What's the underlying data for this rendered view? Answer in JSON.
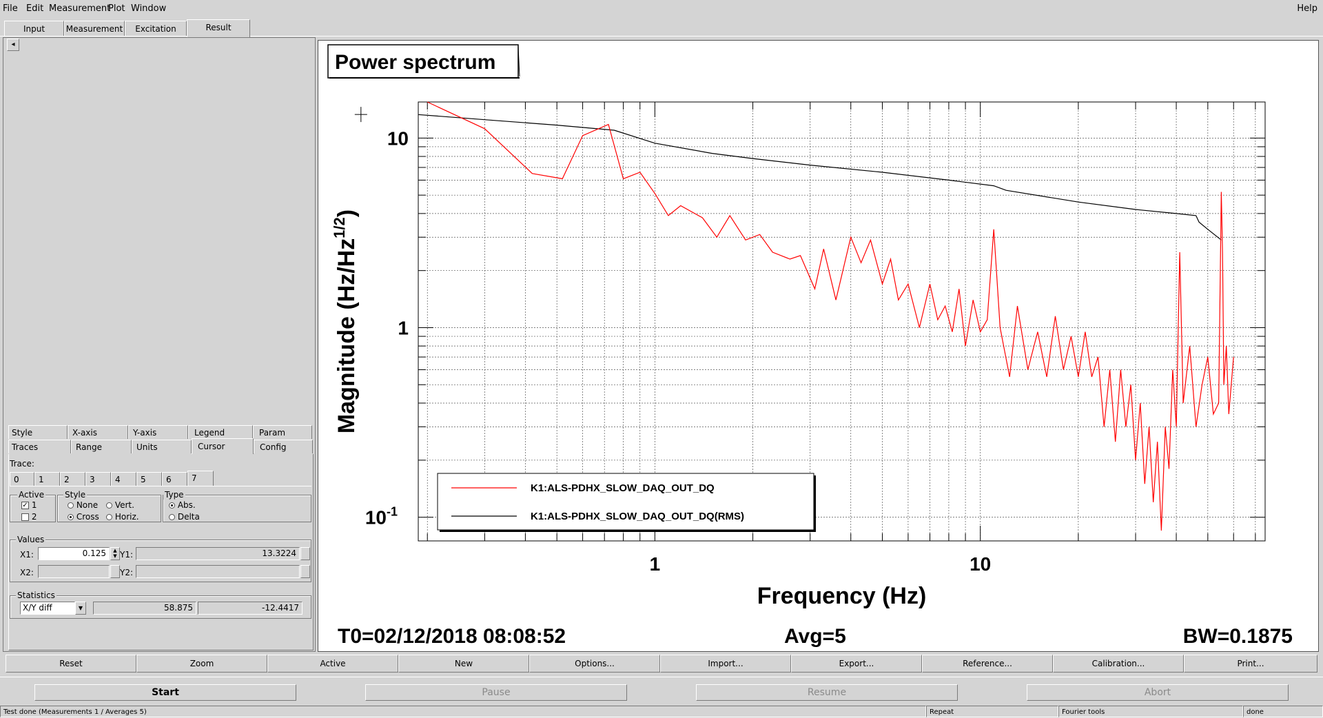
{
  "menu": {
    "file": "File",
    "edit": "Edit",
    "measurement": "Measurement",
    "plot": "Plot",
    "window": "Window",
    "help": "Help"
  },
  "main_tabs": [
    "Input",
    "Measurement",
    "Excitation",
    "Result"
  ],
  "main_tab_selected": "Result",
  "left_panel": {
    "collapse_glyph": "◂",
    "option_tabs_row1": [
      "Style",
      "X-axis",
      "Y-axis",
      "Legend",
      "Param"
    ],
    "option_tabs_row2": [
      "Traces",
      "Range",
      "Units",
      "Cursor",
      "Config"
    ],
    "option_tab_selected": "Cursor",
    "trace_label": "Trace:",
    "trace_tabs": [
      "0",
      "1",
      "2",
      "3",
      "4",
      "5",
      "6",
      "7"
    ],
    "trace_selected": "7",
    "active": {
      "title": "Active",
      "items": [
        {
          "label": "1",
          "checked": true
        },
        {
          "label": "2",
          "checked": false
        }
      ]
    },
    "style": {
      "title": "Style",
      "none": "None",
      "vert": "Vert.",
      "cross": "Cross",
      "horiz": "Horiz.",
      "selected": "Cross"
    },
    "type": {
      "title": "Type",
      "abs": "Abs.",
      "delta": "Delta",
      "selected": "Abs."
    },
    "values": {
      "title": "Values",
      "x1_label": "X1:",
      "x1": "0.125",
      "y1_label": "Y1:",
      "y1": "13.3224",
      "x2_label": "X2:",
      "x2": "",
      "y2_label": "Y2:",
      "y2": ""
    },
    "statistics": {
      "title": "Statistics",
      "mode": "X/Y diff",
      "v1": "58.875",
      "v2": "-12.4417"
    }
  },
  "plot": {
    "title": "Power spectrum",
    "t0": "T0=02/12/2018 08:08:52",
    "avg": "Avg=5",
    "bw": "BW=0.1875",
    "chart_data": {
      "type": "line",
      "xlabel": "Frequency (Hz)",
      "ylabel": "Magnitude (Hz/Hz",
      "ylabel_sup": "1/2",
      "ylabel_close": ")",
      "x_scale": "log",
      "y_scale": "log",
      "xlim": [
        0.1875,
        75
      ],
      "ylim": [
        0.075,
        15.5
      ],
      "grid": true,
      "x_tick_labels": [
        {
          "v": 1,
          "t": "1"
        },
        {
          "v": 10,
          "t": "10"
        }
      ],
      "y_tick_labels": [
        {
          "v": 10,
          "t": "10"
        },
        {
          "v": 1,
          "t": "1"
        },
        {
          "v": 0.1,
          "t": "10",
          "sup": "-1"
        }
      ],
      "legend_placement": "bottom-left",
      "series": [
        {
          "name": "K1:ALS-PDHX_SLOW_DAQ_OUT_DQ",
          "color": "#ff0000",
          "points": [
            [
              0.2,
              15.5
            ],
            [
              0.3,
              11.2
            ],
            [
              0.42,
              6.5
            ],
            [
              0.52,
              6.1
            ],
            [
              0.6,
              10.3
            ],
            [
              0.72,
              11.8
            ],
            [
              0.8,
              6.1
            ],
            [
              0.9,
              6.6
            ],
            [
              1.0,
              5.1
            ],
            [
              1.1,
              3.9
            ],
            [
              1.2,
              4.4
            ],
            [
              1.4,
              3.8
            ],
            [
              1.55,
              3.0
            ],
            [
              1.7,
              3.9
            ],
            [
              1.9,
              2.9
            ],
            [
              2.1,
              3.1
            ],
            [
              2.3,
              2.5
            ],
            [
              2.6,
              2.3
            ],
            [
              2.8,
              2.4
            ],
            [
              3.1,
              1.6
            ],
            [
              3.3,
              2.6
            ],
            [
              3.6,
              1.4
            ],
            [
              4.0,
              3.0
            ],
            [
              4.3,
              2.2
            ],
            [
              4.6,
              2.9
            ],
            [
              5.0,
              1.7
            ],
            [
              5.3,
              2.3
            ],
            [
              5.6,
              1.4
            ],
            [
              6.0,
              1.7
            ],
            [
              6.5,
              1.0
            ],
            [
              7.0,
              1.7
            ],
            [
              7.4,
              1.1
            ],
            [
              7.8,
              1.3
            ],
            [
              8.2,
              0.95
            ],
            [
              8.6,
              1.6
            ],
            [
              9.0,
              0.8
            ],
            [
              9.5,
              1.4
            ],
            [
              10.0,
              0.95
            ],
            [
              10.5,
              1.1
            ],
            [
              11.0,
              3.3
            ],
            [
              11.5,
              1.0
            ],
            [
              12.3,
              0.55
            ],
            [
              13.0,
              1.3
            ],
            [
              14.0,
              0.6
            ],
            [
              15.0,
              0.95
            ],
            [
              16.0,
              0.55
            ],
            [
              17.0,
              1.15
            ],
            [
              18.0,
              0.6
            ],
            [
              19.0,
              0.9
            ],
            [
              20.0,
              0.55
            ],
            [
              21.0,
              0.95
            ],
            [
              22.0,
              0.55
            ],
            [
              23.0,
              0.7
            ],
            [
              24.0,
              0.3
            ],
            [
              25.0,
              0.6
            ],
            [
              26.0,
              0.25
            ],
            [
              27.0,
              0.6
            ],
            [
              28.0,
              0.3
            ],
            [
              29.0,
              0.5
            ],
            [
              30.0,
              0.2
            ],
            [
              31.0,
              0.4
            ],
            [
              32.0,
              0.15
            ],
            [
              33.0,
              0.3
            ],
            [
              34.0,
              0.12
            ],
            [
              35.0,
              0.25
            ],
            [
              36.0,
              0.085
            ],
            [
              37.0,
              0.3
            ],
            [
              38.0,
              0.18
            ],
            [
              39.0,
              0.6
            ],
            [
              40.0,
              0.3
            ],
            [
              41.0,
              2.5
            ],
            [
              42.0,
              0.4
            ],
            [
              44.0,
              0.8
            ],
            [
              46.0,
              0.3
            ],
            [
              48.0,
              0.5
            ],
            [
              50.0,
              0.7
            ],
            [
              52.0,
              0.35
            ],
            [
              54.0,
              0.4
            ],
            [
              55.0,
              5.2
            ],
            [
              55.5,
              2.5
            ],
            [
              56.0,
              0.5
            ],
            [
              57.0,
              0.8
            ],
            [
              58.0,
              0.35
            ],
            [
              60.0,
              0.7
            ]
          ]
        },
        {
          "name": "K1:ALS-PDHX_SLOW_DAQ_OUT_DQ(RMS)",
          "color": "#000000",
          "points": [
            [
              0.1875,
              13.3
            ],
            [
              0.3,
              12.5
            ],
            [
              0.5,
              11.7
            ],
            [
              0.75,
              11.0
            ],
            [
              1.0,
              9.4
            ],
            [
              1.5,
              8.3
            ],
            [
              2.0,
              7.8
            ],
            [
              3.0,
              7.2
            ],
            [
              5.0,
              6.6
            ],
            [
              8.0,
              6.0
            ],
            [
              11.0,
              5.6
            ],
            [
              12.0,
              5.3
            ],
            [
              20.0,
              4.6
            ],
            [
              30.0,
              4.2
            ],
            [
              40.0,
              4.0
            ],
            [
              46.0,
              3.9
            ],
            [
              47.0,
              3.6
            ],
            [
              50.0,
              3.3
            ],
            [
              55.0,
              2.9
            ]
          ]
        }
      ]
    }
  },
  "toolbar": [
    "Reset",
    "Zoom",
    "Active",
    "New",
    "Options...",
    "Import...",
    "Export...",
    "Reference...",
    "Calibration...",
    "Print..."
  ],
  "actions": {
    "start": "Start",
    "pause": "Pause",
    "resume": "Resume",
    "abort": "Abort"
  },
  "status": {
    "message": "Test done (Measurements 1 / Averages 5)",
    "repeat": "Repeat",
    "tools": "Fourier tools",
    "state": "done"
  }
}
